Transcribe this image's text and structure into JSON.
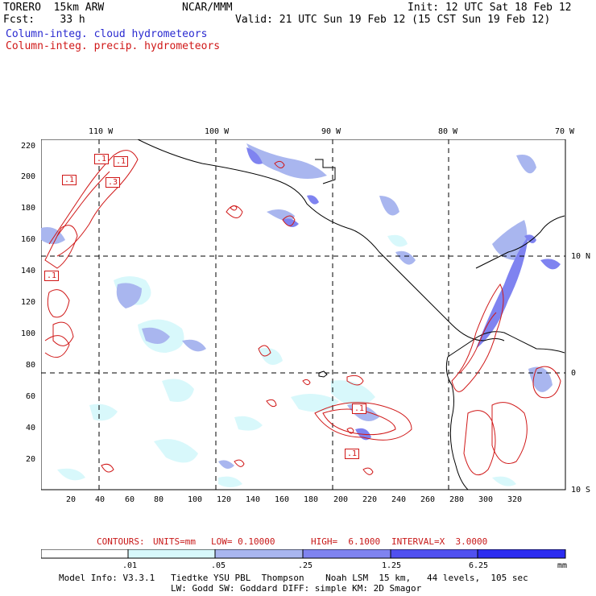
{
  "header": {
    "line1_left": "TORERO  15km ARW",
    "line1_center": "NCAR/MMM",
    "line1_right": "Init: 12 UTC Sat 18 Feb 12",
    "line2_left": "Fcst:    33 h",
    "line2_right": "Valid: 21 UTC Sun 19 Feb 12 (15 CST Sun 19 Feb 12)",
    "legend_blue": "Column-integ. cloud hydrometeors",
    "legend_red": "Column-integ. precip. hydrometeors",
    "colors": {
      "blue": "#2a2ad0",
      "red": "#d01818"
    }
  },
  "axes": {
    "top_lon": [
      "110 W",
      "100 W",
      "90 W",
      "80 W",
      "70 W"
    ],
    "right_lat": [
      "10 N",
      "0",
      "10 S"
    ],
    "left_y": [
      "220",
      "200",
      "180",
      "160",
      "140",
      "120",
      "100",
      "80",
      "60",
      "40",
      "20"
    ],
    "bottom_x": [
      "20",
      "40",
      "60",
      "80",
      "100",
      "120",
      "140",
      "160",
      "180",
      "200",
      "220",
      "240",
      "260",
      "280",
      "300",
      "320"
    ]
  },
  "contour_labels": [
    ".1",
    ".1",
    ".1",
    ".3",
    ".1",
    ".1",
    ".1"
  ],
  "contours_info": {
    "label": "CONTOURS:",
    "units": "UNITS=mm",
    "low": "LOW= 0.10000",
    "high": "HIGH=  6.1000",
    "interval": "INTERVAL=X  3.0000"
  },
  "colorbar": {
    "ticks": [
      ".01",
      ".05",
      ".25",
      "1.25",
      "6.25"
    ],
    "unit": "mm",
    "colors": [
      "#ffffff",
      "#d8f8fb",
      "#a9b6ef",
      "#7f83f0",
      "#5050f0",
      "#2c2cf0"
    ]
  },
  "model_info": {
    "line1": "Model Info: V3.3.1   Tiedtke YSU PBL  Thompson    Noah LSM  15 km,   44 levels,  105 sec",
    "line2": "LW: Godd SW: Goddard DIFF: simple KM: 2D Smagor"
  }
}
